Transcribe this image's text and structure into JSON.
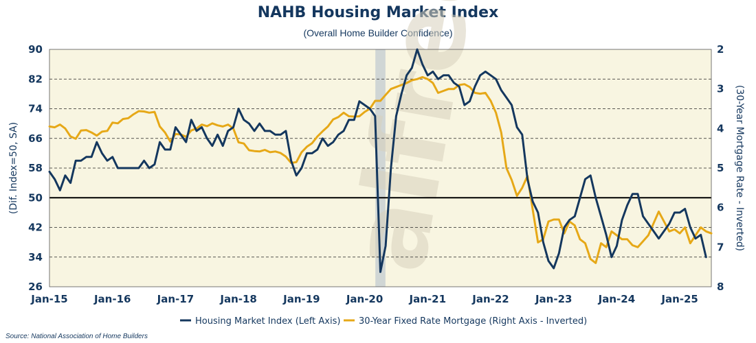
{
  "chart_data": {
    "type": "line",
    "title": "NAHB Housing Market Index",
    "subtitle": "(Overall Home Builder Confidence)",
    "source": "Source: National Association of Home Builders",
    "watermark": "alfred meek",
    "ylabel_left": "(Dif. Index=50, SA)",
    "ylabel_right": "(30-Year Mortgage Rate - Inverted)",
    "ylim_left": [
      26,
      90
    ],
    "yticks_left": [
      26,
      34,
      42,
      50,
      58,
      66,
      74,
      82,
      90
    ],
    "ylim_right_inverted": [
      2,
      8
    ],
    "yticks_right": [
      2,
      3,
      4,
      5,
      6,
      7,
      8
    ],
    "xlim": [
      2015.0,
      2025.5
    ],
    "xticks": [
      {
        "x": 2015.0,
        "label": "Jan-15"
      },
      {
        "x": 2016.0,
        "label": "Jan-16"
      },
      {
        "x": 2017.0,
        "label": "Jan-17"
      },
      {
        "x": 2018.0,
        "label": "Jan-18"
      },
      {
        "x": 2019.0,
        "label": "Jan-19"
      },
      {
        "x": 2020.0,
        "label": "Jan-20"
      },
      {
        "x": 2021.0,
        "label": "Jan-21"
      },
      {
        "x": 2022.0,
        "label": "Jan-22"
      },
      {
        "x": 2023.0,
        "label": "Jan-23"
      },
      {
        "x": 2024.0,
        "label": "Jan-24"
      },
      {
        "x": 2025.0,
        "label": "Jan-25"
      }
    ],
    "reference_line": 50,
    "recession": {
      "start": 2020.17,
      "end": 2020.33
    },
    "series": [
      {
        "name": "Housing Market Index (Left Axis)",
        "axis": "left",
        "color": "#14375e",
        "start": 2015.0,
        "step": 0.08333,
        "values": [
          57,
          55,
          52,
          56,
          54,
          60,
          60,
          61,
          61,
          65,
          62,
          60,
          61,
          58,
          58,
          58,
          58,
          58,
          60,
          58,
          59,
          65,
          63,
          63,
          69,
          67,
          65,
          71,
          68,
          69,
          66,
          64,
          67,
          64,
          68,
          69,
          74,
          71,
          70,
          68,
          70,
          68,
          68,
          67,
          67,
          68,
          60,
          56,
          58,
          62,
          62,
          63,
          66,
          64,
          65,
          67,
          68,
          71,
          71,
          76,
          75,
          74,
          72,
          30,
          37,
          58,
          72,
          78,
          83,
          85,
          90,
          86,
          83,
          84,
          82,
          83,
          83,
          81,
          80,
          75,
          76,
          80,
          83,
          84,
          83,
          82,
          79,
          77,
          75,
          69,
          67,
          55,
          49,
          46,
          38,
          33,
          31,
          35,
          42,
          44,
          45,
          50,
          55,
          56,
          50,
          45,
          40,
          34,
          37,
          44,
          48,
          51,
          51,
          45,
          43,
          41,
          39,
          41,
          43,
          46,
          46,
          47,
          42,
          39,
          40,
          34
        ]
      },
      {
        "name": "30-Year Fixed Rate Mortgage (Right Axis - Inverted)",
        "axis": "right",
        "color": "#e6a817",
        "start": 2015.0,
        "step": 0.08333,
        "values": [
          3.95,
          3.97,
          3.9,
          4.0,
          4.2,
          4.26,
          4.05,
          4.04,
          4.1,
          4.18,
          4.08,
          4.06,
          3.85,
          3.87,
          3.76,
          3.74,
          3.64,
          3.56,
          3.57,
          3.6,
          3.58,
          3.95,
          4.1,
          4.33,
          4.14,
          4.15,
          4.21,
          4.05,
          4.0,
          3.9,
          3.94,
          3.87,
          3.92,
          3.95,
          3.9,
          4.0,
          4.35,
          4.38,
          4.55,
          4.57,
          4.58,
          4.54,
          4.6,
          4.58,
          4.62,
          4.71,
          4.87,
          4.85,
          4.6,
          4.46,
          4.37,
          4.2,
          4.07,
          3.95,
          3.77,
          3.71,
          3.6,
          3.69,
          3.7,
          3.69,
          3.58,
          3.5,
          3.3,
          3.3,
          3.15,
          3.0,
          2.95,
          2.9,
          2.85,
          2.78,
          2.75,
          2.7,
          2.75,
          2.85,
          3.1,
          3.05,
          3.0,
          3.0,
          2.9,
          2.88,
          2.95,
          3.1,
          3.12,
          3.1,
          3.3,
          3.6,
          4.1,
          5.0,
          5.3,
          5.7,
          5.5,
          5.2,
          6.05,
          6.88,
          6.8,
          6.35,
          6.3,
          6.3,
          6.65,
          6.35,
          6.45,
          6.8,
          6.9,
          7.3,
          7.4,
          6.9,
          7.0,
          6.6,
          6.7,
          6.8,
          6.8,
          6.95,
          7.0,
          6.85,
          6.7,
          6.4,
          6.1,
          6.35,
          6.6,
          6.55,
          6.65,
          6.5,
          6.9,
          6.7,
          6.5,
          6.6,
          6.65
        ]
      }
    ],
    "legend_position": "bottom-center"
  }
}
